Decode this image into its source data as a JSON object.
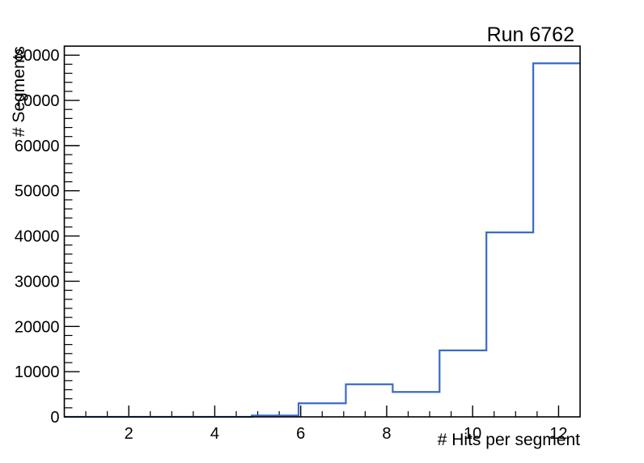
{
  "chart_data": {
    "type": "bar",
    "subtype": "step-histogram",
    "title": "Run 6762",
    "xlabel": "# Hits per segment",
    "ylabel": "# Segments",
    "bin_edges": [
      0.5,
      1.59,
      2.68,
      3.77,
      4.86,
      5.95,
      7.05,
      8.14,
      9.23,
      10.32,
      11.41,
      12.5
    ],
    "values": [
      0,
      0,
      0,
      0,
      300,
      3000,
      7200,
      5500,
      14700,
      40800,
      78200
    ],
    "xlim": [
      0.5,
      12.5
    ],
    "ylim": [
      0,
      82000
    ],
    "grid": "off",
    "legend": "none",
    "x_axis": {
      "major_ticks": [
        2,
        4,
        6,
        8,
        10,
        12
      ],
      "major_tick_labels": [
        "2",
        "4",
        "6",
        "8",
        "10",
        "12"
      ],
      "minor_tick_step": 0.5
    },
    "y_axis": {
      "major_ticks": [
        0,
        10000,
        20000,
        30000,
        40000,
        50000,
        60000,
        70000,
        80000
      ],
      "major_tick_labels": [
        "0",
        "10000",
        "20000",
        "30000",
        "40000",
        "50000",
        "60000",
        "70000",
        "80000"
      ],
      "minor_tick_step": 2000
    },
    "colors": {
      "line": "#3a6bc5",
      "frame": "#000000",
      "text": "#000000",
      "background": "#ffffff"
    }
  }
}
